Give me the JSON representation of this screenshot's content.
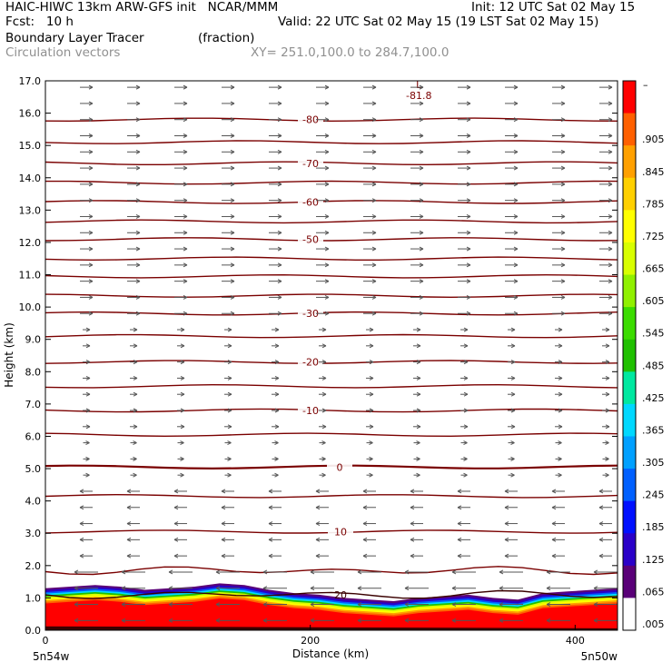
{
  "header": {
    "title_left": "HAIC-HIWC 13km ARW-GFS init   NCAR/MMM",
    "init": "Init: 12 UTC Sat 02 May 15",
    "fcst": "Fcst:   10 h",
    "valid": "Valid: 22 UTC Sat 02 May 15 (19 LST Sat 02 May 15)",
    "field_name": "Boundary Layer Tracer",
    "field_units": "(fraction)",
    "overlay": "Circulation vectors",
    "xy": "XY= 251.0,100.0 to 284.7,100.0"
  },
  "colors": {
    "contour": "#7a0000",
    "vector": "#555555",
    "scale": [
      "#ffffff",
      "#5a0078",
      "#2a00c8",
      "#0010ff",
      "#0060ff",
      "#00a0ff",
      "#00d8ff",
      "#00e8a0",
      "#20c000",
      "#3cdc00",
      "#90f000",
      "#d8ff00",
      "#ffff00",
      "#ffd000",
      "#ffa000",
      "#ff6000",
      "#ff0000"
    ]
  },
  "chart_data": {
    "type": "heatmap",
    "title": "Boundary Layer Tracer",
    "xlabel": "Distance (km)",
    "ylabel": "Height (km)",
    "xlim": [
      0,
      432
    ],
    "ylim": [
      0,
      17
    ],
    "x_ticks": [
      "0",
      "200",
      "400"
    ],
    "x_tick_values": [
      0,
      200,
      400
    ],
    "x_end_labels": [
      "5n54w",
      "5n50w"
    ],
    "y_ticks": [
      "0.0",
      "1.0",
      "2.0",
      "3.0",
      "4.0",
      "5.0",
      "6.0",
      "7.0",
      "8.0",
      "9.0",
      "10.0",
      "11.0",
      "12.0",
      "13.0",
      "14.0",
      "15.0",
      "16.0",
      "17.0"
    ],
    "colorbar_labels": [
      ".005",
      ".065",
      ".125",
      ".185",
      ".245",
      ".305",
      ".365",
      ".425",
      ".485",
      ".545",
      ".605",
      ".665",
      ".725",
      ".785",
      ".845",
      ".905"
    ],
    "colorbar_top": "–",
    "tracer_top_km": [
      1.3,
      1.35,
      1.4,
      1.35,
      1.25,
      1.3,
      1.35,
      1.45,
      1.4,
      1.25,
      1.15,
      1.1,
      1.0,
      0.95,
      0.9,
      1.0,
      1.05,
      1.1,
      1.0,
      0.95,
      1.15,
      1.2,
      1.25,
      1.3
    ],
    "contours": [
      {
        "label": "20",
        "height_km": 1.1
      },
      {
        "label": "",
        "height_km": 1.85
      },
      {
        "label": "10",
        "height_km": 3.05
      },
      {
        "label": "",
        "height_km": 4.15
      },
      {
        "label": "0",
        "height_km": 5.05
      },
      {
        "label": "",
        "height_km": 6.05
      },
      {
        "label": "-10",
        "height_km": 6.8
      },
      {
        "label": "",
        "height_km": 7.55
      },
      {
        "label": "-20",
        "height_km": 8.3
      },
      {
        "label": "",
        "height_km": 9.1
      },
      {
        "label": "-30",
        "height_km": 9.8
      },
      {
        "label": "",
        "height_km": 10.35
      },
      {
        "label": "",
        "height_km": 10.95
      },
      {
        "label": "",
        "height_km": 11.5
      },
      {
        "label": "-50",
        "height_km": 12.1
      },
      {
        "label": "",
        "height_km": 12.65
      },
      {
        "label": "-60",
        "height_km": 13.25
      },
      {
        "label": "",
        "height_km": 13.85
      },
      {
        "label": "-70",
        "height_km": 14.45
      },
      {
        "label": "",
        "height_km": 15.1
      },
      {
        "label": "-80",
        "height_km": 15.8
      }
    ],
    "minimum": {
      "label": "L",
      "value": "-81.8",
      "x_km": 282,
      "height_km": 16.6
    },
    "legend": "none",
    "grid": false
  }
}
